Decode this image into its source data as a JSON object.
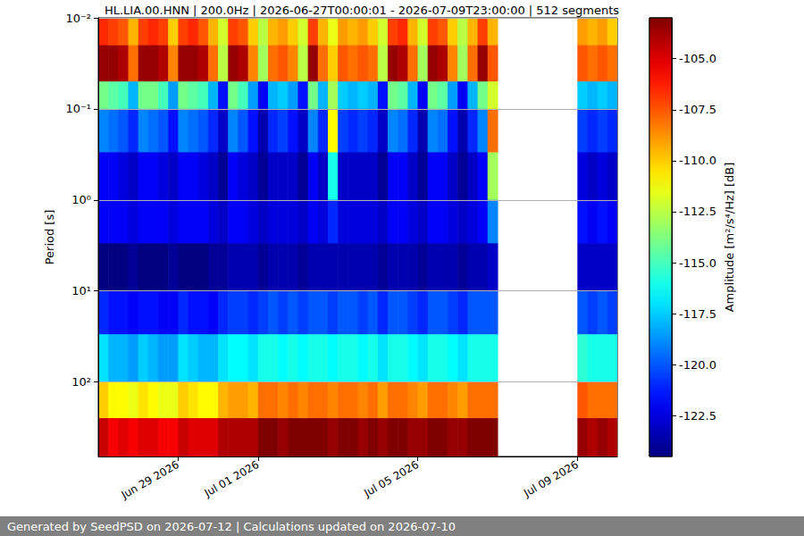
{
  "chart_data": {
    "type": "heatmap",
    "title": "HL.LIA.00.HNN | 200.0Hz | 2026-06-27T00:00:01 - 2026-07-09T23:00:00 | 512 segments",
    "footer": "Generated by SeedPSD on 2026-07-12 | Calculations updated on 2026-07-10",
    "ylabel": "Period [s]",
    "log": "y",
    "grid": true,
    "xlim": [
      "2026-06-27T00:00",
      "2026-07-10T00:00"
    ],
    "xticks": [
      {
        "value": "2026-06-29",
        "label": "Jun 29 2026"
      },
      {
        "value": "2026-07-01",
        "label": "Jul 01 2026"
      },
      {
        "value": "2026-07-05",
        "label": "Jul 05 2026"
      },
      {
        "value": "2026-07-09",
        "label": "Jul 09 2026"
      }
    ],
    "ylim": [
      0.01,
      660
    ],
    "yticks": [
      {
        "value": 0.01,
        "label": "10⁻²"
      },
      {
        "value": 0.1,
        "label": "10⁻¹"
      },
      {
        "value": 1,
        "label": "10⁰"
      },
      {
        "value": 10,
        "label": "10¹"
      },
      {
        "value": 100,
        "label": "10²"
      }
    ],
    "colorbar": {
      "label": "Amplitude [m²/s⁴/Hz] [dB]",
      "range": [
        -124.5,
        -103
      ],
      "ticks": [
        {
          "value": -122.5,
          "label": "-122.5"
        },
        {
          "value": -120,
          "label": "-120.0"
        },
        -117.5,
        {
          "value": -115,
          "label": "-115.0"
        },
        -112.5,
        {
          "value": -110,
          "label": "-110.0"
        },
        -107.5,
        {
          "value": -105,
          "label": "-105.0"
        }
      ]
    },
    "x_bins": [
      "2026-06-27T00:00",
      "2026-06-27T06:00",
      "2026-06-27T12:00",
      "2026-06-27T18:00",
      "2026-06-28T00:00",
      "2026-06-28T06:00",
      "2026-06-28T12:00",
      "2026-06-28T18:00",
      "2026-06-29T00:00",
      "2026-06-29T06:00",
      "2026-06-29T12:00",
      "2026-06-29T18:00",
      "2026-06-30T00:00",
      "2026-06-30T06:00",
      "2026-06-30T12:00",
      "2026-06-30T18:00",
      "2026-07-01T00:00",
      "2026-07-01T06:00",
      "2026-07-01T12:00",
      "2026-07-01T18:00",
      "2026-07-02T00:00",
      "2026-07-02T06:00",
      "2026-07-02T12:00",
      "2026-07-02T18:00",
      "2026-07-03T00:00",
      "2026-07-03T06:00",
      "2026-07-03T12:00",
      "2026-07-03T18:00",
      "2026-07-04T00:00",
      "2026-07-04T06:00",
      "2026-07-04T12:00",
      "2026-07-04T18:00",
      "2026-07-05T00:00",
      "2026-07-05T06:00",
      "2026-07-05T12:00",
      "2026-07-05T18:00",
      "2026-07-06T00:00",
      "2026-07-06T06:00",
      "2026-07-06T12:00",
      "2026-07-06T18:00",
      "2026-07-07T00:00",
      "2026-07-07T06:00",
      "2026-07-07T12:00",
      "2026-07-07T18:00",
      "2026-07-08T00:00",
      "2026-07-08T06:00",
      "2026-07-08T12:00",
      "2026-07-08T18:00",
      "2026-07-09T00:00",
      "2026-07-09T06:00",
      "2026-07-09T12:00",
      "2026-07-09T18:00",
      "2026-07-10T00:00"
    ],
    "period_bins": [
      0.01,
      0.02,
      0.05,
      0.1,
      0.3,
      1,
      3,
      10,
      30,
      100,
      250,
      660
    ],
    "values": [
      [
        -106.5,
        -107,
        -107.5,
        -109.5,
        -107,
        -106.5,
        -107,
        -110,
        -107,
        -106.5,
        -107.5,
        -109.5,
        -112,
        -107,
        -107.5,
        -110,
        -112.5,
        -109.5,
        -109,
        -110,
        -112,
        -107,
        -109.5,
        -111.5,
        -109,
        -109.5,
        -109,
        -110,
        -112,
        -107,
        -106.5,
        -109.5,
        -112,
        -107,
        -107.5,
        -110,
        -112.5,
        -109.5,
        -107,
        -109.5,
        null,
        null,
        null,
        null,
        null,
        null,
        null,
        null,
        -109,
        -109.5,
        -109,
        -110
      ],
      [
        -103.5,
        -103.5,
        -104,
        -108,
        -103.5,
        -103.5,
        -104,
        -108.5,
        -103.5,
        -103.5,
        -104,
        -108,
        -112.5,
        -103.5,
        -104,
        -108.5,
        -113,
        -108,
        -107.5,
        -108.5,
        -112.5,
        -103.5,
        -108,
        -110,
        -107.5,
        -108,
        -107.5,
        -108,
        -112.5,
        -103.5,
        -104,
        -108,
        -113,
        -103.5,
        -104,
        -108.5,
        -113,
        -108,
        -103.5,
        -107.5,
        null,
        null,
        null,
        null,
        null,
        null,
        null,
        null,
        -107.5,
        -108,
        -107.5,
        -108
      ],
      [
        -114,
        -114.5,
        -115,
        -118,
        -114,
        -114,
        -115,
        -118.5,
        -114,
        -114.5,
        -115,
        -118,
        -121.5,
        -114,
        -115,
        -118.5,
        -122,
        -118,
        -117.5,
        -118.5,
        -121.5,
        -114,
        -118,
        -113,
        -117.5,
        -118,
        -117.5,
        -118,
        -121.5,
        -114,
        -114.5,
        -118,
        -122,
        -114,
        -114.5,
        -118.5,
        -122,
        -118,
        -114,
        -112,
        null,
        null,
        null,
        null,
        null,
        null,
        null,
        null,
        -117.5,
        -118,
        -117.5,
        -118
      ],
      [
        -119,
        -119.5,
        -120,
        -121,
        -119,
        -119.5,
        -120,
        -121.5,
        -119,
        -119.5,
        -120,
        -121,
        -123,
        -119,
        -120,
        -121.5,
        -123.5,
        -121,
        -120.5,
        -121.5,
        -123,
        -119,
        -121,
        -111,
        -120.5,
        -121,
        -120.5,
        -121,
        -123,
        -119,
        -119.5,
        -121,
        -123.5,
        -119,
        -119.5,
        -121.5,
        -123.5,
        -121,
        -119,
        -108,
        null,
        null,
        null,
        null,
        null,
        null,
        null,
        null,
        -120.5,
        -121,
        -120.5,
        -121
      ],
      [
        -122,
        -122,
        -122.5,
        -123,
        -122,
        -122,
        -122.5,
        -123,
        -122,
        -122,
        -122.5,
        -123,
        -124,
        -122,
        -122.5,
        -123,
        -124,
        -123,
        -123,
        -123,
        -124,
        -122,
        -123,
        -116,
        -123,
        -123,
        -123,
        -123,
        -124,
        -122,
        -122,
        -123,
        -124,
        -122,
        -122,
        -123,
        -124,
        -123,
        -122,
        -113,
        null,
        null,
        null,
        null,
        null,
        null,
        null,
        null,
        -122.5,
        -123,
        -122.5,
        -123
      ],
      [
        -122,
        -122,
        -122,
        -122.5,
        -122,
        -122,
        -122,
        -122.5,
        -122,
        -122,
        -122,
        -122.5,
        -123,
        -122,
        -122,
        -122.5,
        -123,
        -122.5,
        -122.5,
        -122.5,
        -123,
        -122,
        -122.5,
        -121,
        -122.5,
        -122.5,
        -122.5,
        -122.5,
        -123,
        -122,
        -122,
        -122.5,
        -123,
        -122,
        -122,
        -122.5,
        -123,
        -122.5,
        -122,
        -119,
        null,
        null,
        null,
        null,
        null,
        null,
        null,
        null,
        -121.5,
        -122,
        -121.5,
        -122
      ],
      [
        -124.5,
        -124.5,
        -124.5,
        -124,
        -124.5,
        -124.5,
        -124.5,
        -124,
        -124.5,
        -124.5,
        -124.5,
        -124,
        -124,
        -123.5,
        -123.5,
        -123.5,
        -124,
        -123.5,
        -123.5,
        -123.5,
        -124,
        -123.5,
        -123.5,
        -123.5,
        -123.5,
        -123.5,
        -123.5,
        -123.5,
        -124,
        -123.5,
        -123.5,
        -123.5,
        -124,
        -123.5,
        -123.5,
        -123.5,
        -124,
        -123.5,
        -123.5,
        -123,
        null,
        null,
        null,
        null,
        null,
        null,
        null,
        null,
        -123,
        -123,
        -123,
        -123
      ],
      [
        -121,
        -121.5,
        -121.5,
        -122,
        -121.5,
        -121.5,
        -122,
        -122,
        -121,
        -121.5,
        -121.5,
        -122,
        -121,
        -120.5,
        -120.5,
        -121,
        -120.5,
        -120,
        -120.5,
        -120,
        -120.5,
        -120,
        -120,
        -120.5,
        -120,
        -120,
        -120.5,
        -120,
        -121,
        -120,
        -120,
        -120.5,
        -121,
        -120,
        -120,
        -120.5,
        -121,
        -120,
        -120,
        -120,
        null,
        null,
        null,
        null,
        null,
        null,
        null,
        null,
        -120,
        -120.5,
        -120,
        -120.5
      ],
      [
        -117,
        -118,
        -118,
        -118.5,
        -117.5,
        -118,
        -118.5,
        -118.5,
        -117,
        -117.5,
        -118,
        -118,
        -117,
        -116.5,
        -116.5,
        -117,
        -116,
        -116,
        -116.5,
        -116,
        -116.5,
        -116,
        -116,
        -116.5,
        -116,
        -116,
        -116.5,
        -116,
        -117,
        -116,
        -116,
        -116.5,
        -117,
        -116,
        -116,
        -116.5,
        -117,
        -116,
        -116,
        -116,
        null,
        null,
        null,
        null,
        null,
        null,
        null,
        null,
        -115.5,
        -116,
        -116,
        -116
      ],
      [
        -110,
        -111,
        -111,
        -111.5,
        -110.5,
        -111,
        -111.5,
        -111.5,
        -110,
        -110.5,
        -111,
        -111,
        -109.5,
        -109,
        -109,
        -109.5,
        -108,
        -108,
        -108.5,
        -108,
        -108.5,
        -108,
        -108,
        -108.5,
        -108,
        -108,
        -108.5,
        -108,
        -109,
        -108,
        -108,
        -108.5,
        -109,
        -108,
        -108,
        -108.5,
        -109,
        -108,
        -108,
        -108,
        null,
        null,
        null,
        null,
        null,
        null,
        null,
        null,
        -107.5,
        -108,
        -108,
        -108
      ],
      [
        -104.5,
        -105.5,
        -105,
        -105.5,
        -105,
        -105,
        -105.5,
        -105.5,
        -104.5,
        -105,
        -105,
        -105,
        -104,
        -104,
        -104,
        -104,
        -103,
        -103,
        -103.5,
        -103,
        -103,
        -103,
        -103,
        -103.5,
        -103,
        -103,
        -103.5,
        -103,
        -103.5,
        -103,
        -103,
        -103.5,
        -103.5,
        -103,
        -103,
        -103.5,
        -103.5,
        -103,
        -103,
        -103,
        null,
        null,
        null,
        null,
        null,
        null,
        null,
        null,
        -103.5,
        -104,
        -103.5,
        -104
      ]
    ]
  }
}
